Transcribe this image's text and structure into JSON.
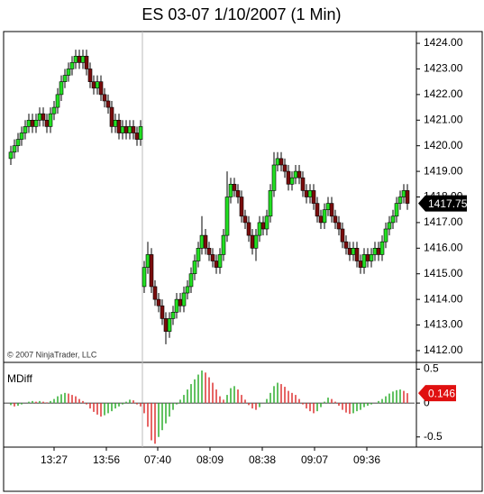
{
  "chart_data": [
    {
      "type": "candlestick",
      "title": "ES 03-07  1/10/2007  (1 Min)",
      "annotation": "© 2007 NinjaTrader, LLC",
      "open": [
        1419.5,
        1419.75,
        1420.0,
        1420.25,
        1420.5,
        1420.75,
        1421.0,
        1420.75,
        1421.0,
        1421.25,
        1421.0,
        1420.75,
        1421.25,
        1421.5,
        1422.0,
        1422.5,
        1422.75,
        1423.0,
        1423.25,
        1423.5,
        1423.25,
        1423.5,
        1423.0,
        1422.5,
        1422.25,
        1422.5,
        1422.0,
        1421.75,
        1421.5,
        1420.75,
        1421.0,
        1420.5,
        1420.75,
        1420.5,
        1420.75,
        1420.5,
        1420.25,
        1414.5,
        1415.25,
        1415.75,
        1414.5,
        1414.0,
        1413.75,
        1413.25,
        1412.75,
        1413.25,
        1413.5,
        1414.0,
        1413.75,
        1414.25,
        1414.5,
        1415.0,
        1415.5,
        1416.0,
        1416.5,
        1416.0,
        1415.75,
        1415.5,
        1415.25,
        1415.75,
        1416.5,
        1418.0,
        1418.5,
        1418.25,
        1418.0,
        1417.25,
        1417.0,
        1416.5,
        1416.0,
        1416.5,
        1417.0,
        1416.75,
        1417.25,
        1418.25,
        1419.25,
        1419.5,
        1419.25,
        1419.0,
        1418.5,
        1418.75,
        1419.0,
        1418.75,
        1418.25,
        1418.0,
        1418.25,
        1417.75,
        1417.25,
        1417.0,
        1417.5,
        1417.75,
        1417.25,
        1417.0,
        1416.75,
        1416.25,
        1416.0,
        1415.75,
        1416.0,
        1415.5,
        1415.25,
        1415.75,
        1415.5,
        1415.75,
        1416.0,
        1415.75,
        1416.25,
        1416.75,
        1417.0,
        1417.25,
        1417.75,
        1418.0,
        1418.25
      ],
      "high": [
        1420.0,
        1420.25,
        1420.5,
        1420.75,
        1421.0,
        1421.25,
        1421.25,
        1421.25,
        1421.5,
        1421.5,
        1421.25,
        1421.5,
        1421.75,
        1422.25,
        1422.75,
        1423.0,
        1423.25,
        1423.5,
        1423.75,
        1423.75,
        1423.75,
        1423.75,
        1423.25,
        1422.75,
        1422.75,
        1422.75,
        1422.25,
        1422.0,
        1421.75,
        1421.25,
        1421.25,
        1421.0,
        1421.0,
        1421.0,
        1421.0,
        1420.75,
        1421.0,
        1415.5,
        1416.25,
        1416.0,
        1414.75,
        1414.25,
        1414.0,
        1413.5,
        1413.5,
        1413.75,
        1414.25,
        1414.25,
        1414.5,
        1414.75,
        1415.25,
        1415.75,
        1416.25,
        1417.25,
        1416.75,
        1416.25,
        1416.0,
        1415.75,
        1416.0,
        1416.75,
        1419.0,
        1418.75,
        1418.75,
        1418.5,
        1418.25,
        1417.5,
        1417.25,
        1416.75,
        1416.75,
        1417.25,
        1417.25,
        1417.5,
        1418.5,
        1419.75,
        1419.75,
        1419.75,
        1419.5,
        1419.25,
        1419.0,
        1419.25,
        1419.25,
        1419.0,
        1418.5,
        1418.5,
        1418.5,
        1418.0,
        1417.5,
        1417.75,
        1418.0,
        1418.0,
        1417.5,
        1417.25,
        1417.0,
        1416.5,
        1416.25,
        1416.25,
        1416.25,
        1415.75,
        1416.0,
        1416.0,
        1416.0,
        1416.25,
        1416.25,
        1416.5,
        1417.0,
        1417.25,
        1417.5,
        1418.0,
        1418.25,
        1418.5,
        1418.5
      ],
      "low": [
        1419.25,
        1419.5,
        1419.75,
        1420.0,
        1420.25,
        1420.5,
        1420.5,
        1420.5,
        1420.75,
        1420.75,
        1420.5,
        1420.5,
        1421.0,
        1421.25,
        1421.75,
        1422.25,
        1422.5,
        1422.75,
        1423.0,
        1423.0,
        1423.0,
        1422.75,
        1422.25,
        1422.0,
        1422.0,
        1421.75,
        1421.5,
        1421.25,
        1420.5,
        1420.5,
        1420.25,
        1420.25,
        1420.25,
        1420.25,
        1420.25,
        1420.0,
        1420.0,
        1414.25,
        1415.0,
        1414.25,
        1413.75,
        1413.5,
        1413.0,
        1412.25,
        1412.5,
        1413.0,
        1413.25,
        1413.5,
        1413.5,
        1414.0,
        1414.25,
        1414.75,
        1415.25,
        1415.75,
        1415.75,
        1415.5,
        1415.25,
        1415.0,
        1415.0,
        1415.5,
        1416.25,
        1417.75,
        1418.0,
        1417.75,
        1417.0,
        1416.75,
        1416.25,
        1415.75,
        1415.5,
        1416.25,
        1416.5,
        1416.5,
        1417.0,
        1418.0,
        1419.0,
        1419.0,
        1418.75,
        1418.25,
        1418.25,
        1418.5,
        1418.5,
        1418.0,
        1417.75,
        1417.75,
        1417.5,
        1417.0,
        1416.75,
        1416.75,
        1417.25,
        1417.0,
        1416.75,
        1416.5,
        1416.0,
        1415.75,
        1415.5,
        1415.5,
        1415.25,
        1415.0,
        1415.0,
        1415.25,
        1415.25,
        1415.5,
        1415.5,
        1415.5,
        1416.0,
        1416.5,
        1416.75,
        1417.0,
        1417.5,
        1417.75,
        1417.5
      ],
      "close": [
        1419.75,
        1420.0,
        1420.25,
        1420.5,
        1420.75,
        1421.0,
        1420.75,
        1421.0,
        1421.25,
        1421.0,
        1420.75,
        1421.25,
        1421.5,
        1422.0,
        1422.5,
        1422.75,
        1423.0,
        1423.25,
        1423.5,
        1423.25,
        1423.5,
        1423.0,
        1422.5,
        1422.25,
        1422.5,
        1422.0,
        1421.75,
        1421.5,
        1420.75,
        1421.0,
        1420.5,
        1420.75,
        1420.5,
        1420.75,
        1420.5,
        1420.25,
        1420.75,
        1415.25,
        1415.75,
        1414.5,
        1414.0,
        1413.75,
        1413.25,
        1412.75,
        1413.25,
        1413.5,
        1414.0,
        1413.75,
        1414.25,
        1414.5,
        1415.0,
        1415.5,
        1416.0,
        1416.5,
        1416.0,
        1415.75,
        1415.5,
        1415.25,
        1415.75,
        1416.5,
        1418.0,
        1418.5,
        1418.25,
        1418.0,
        1417.25,
        1417.0,
        1416.5,
        1416.0,
        1416.5,
        1417.0,
        1416.75,
        1417.25,
        1418.25,
        1419.25,
        1419.5,
        1419.25,
        1419.0,
        1418.5,
        1418.75,
        1419.0,
        1418.75,
        1418.25,
        1418.0,
        1418.25,
        1417.75,
        1417.25,
        1417.0,
        1417.5,
        1417.75,
        1417.25,
        1417.0,
        1416.75,
        1416.25,
        1416.0,
        1415.75,
        1416.0,
        1415.5,
        1415.25,
        1415.75,
        1415.5,
        1415.75,
        1416.0,
        1415.75,
        1416.25,
        1416.75,
        1417.0,
        1417.25,
        1417.75,
        1418.0,
        1418.25,
        1417.75
      ],
      "color_up": "#22e022",
      "color_down": "#7a0c0c",
      "xlim": [
        -2,
        112
      ],
      "xticks": [
        {
          "value": 12,
          "label": "13:27"
        },
        {
          "value": 26.5,
          "label": "13:56"
        },
        {
          "value": 40.75,
          "label": "07:40"
        },
        {
          "value": 55.25,
          "label": "08:09"
        },
        {
          "value": 69.75,
          "label": "08:38"
        },
        {
          "value": 84.25,
          "label": "09:07"
        },
        {
          "value": 98.75,
          "label": "09:36"
        }
      ],
      "ylim": [
        1411.54,
        1424.46
      ],
      "yticks": [
        {
          "value": 1412,
          "label": "1412.00"
        },
        {
          "value": 1413,
          "label": "1413.00"
        },
        {
          "value": 1414,
          "label": "1414.00"
        },
        {
          "value": 1415,
          "label": "1415.00"
        },
        {
          "value": 1416,
          "label": "1416.00"
        },
        {
          "value": 1417,
          "label": "1417.00"
        },
        {
          "value": 1418,
          "label": "1418.00"
        },
        {
          "value": 1419,
          "label": "1419.00"
        },
        {
          "value": 1420,
          "label": "1420.00"
        },
        {
          "value": 1421,
          "label": "1421.00"
        },
        {
          "value": 1422,
          "label": "1422.00"
        },
        {
          "value": 1423,
          "label": "1423.00"
        },
        {
          "value": 1424,
          "label": "1424.00"
        }
      ],
      "last_marker_color": "#000000"
    },
    {
      "type": "bar",
      "title": "MDiff",
      "values": [
        -0.03,
        -0.05,
        -0.04,
        -0.02,
        0.0,
        0.02,
        0.03,
        0.02,
        0.03,
        0.02,
        0.01,
        0.03,
        0.06,
        0.1,
        0.13,
        0.15,
        0.14,
        0.12,
        0.1,
        0.06,
        0.03,
        -0.02,
        -0.08,
        -0.13,
        -0.17,
        -0.2,
        -0.18,
        -0.15,
        -0.12,
        -0.08,
        -0.05,
        -0.02,
        0.02,
        0.05,
        0.04,
        -0.02,
        -0.05,
        -0.15,
        -0.35,
        -0.55,
        -0.6,
        -0.5,
        -0.4,
        -0.3,
        -0.2,
        -0.1,
        -0.02,
        0.05,
        0.12,
        0.2,
        0.28,
        0.35,
        0.42,
        0.48,
        0.45,
        0.38,
        0.3,
        0.2,
        0.1,
        0.05,
        0.12,
        0.22,
        0.25,
        0.2,
        0.12,
        0.05,
        -0.03,
        -0.08,
        -0.1,
        -0.06,
        0.0,
        0.06,
        0.15,
        0.25,
        0.3,
        0.28,
        0.24,
        0.18,
        0.15,
        0.12,
        0.06,
        -0.02,
        -0.08,
        -0.12,
        -0.15,
        -0.12,
        -0.06,
        0.02,
        0.08,
        0.06,
        0.02,
        -0.04,
        -0.1,
        -0.14,
        -0.16,
        -0.15,
        -0.12,
        -0.1,
        -0.06,
        -0.04,
        -0.02,
        0.0,
        0.03,
        0.06,
        0.1,
        0.14,
        0.17,
        0.19,
        0.2,
        0.18,
        0.146
      ],
      "color_up": "#3bb33b",
      "color_down": "#e04040",
      "last_marker_color": "#e01010",
      "xlim": [
        -2,
        112
      ],
      "ylim": [
        -0.65,
        0.6
      ],
      "yticks": [
        0.5,
        0,
        -0.5
      ]
    }
  ]
}
